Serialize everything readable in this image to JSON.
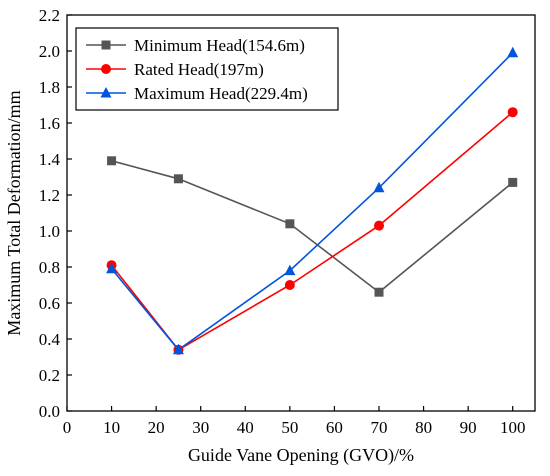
{
  "chart_data": {
    "type": "line",
    "title": "",
    "xlabel": "Guide Vane Opening (GVO)/%",
    "ylabel": "Maximum Total Deformation/mm",
    "xlim": [
      0,
      105
    ],
    "ylim": [
      0.0,
      2.2
    ],
    "xticks": [
      0,
      10,
      20,
      30,
      40,
      50,
      60,
      70,
      80,
      90,
      100
    ],
    "xtick_labels": [
      "0",
      "10",
      "20",
      "30",
      "40",
      "50",
      "60",
      "70",
      "80",
      "90",
      "100"
    ],
    "yticks": [
      0.0,
      0.2,
      0.4,
      0.6,
      0.8,
      1.0,
      1.2,
      1.4,
      1.6,
      1.8,
      2.0,
      2.2
    ],
    "ytick_labels": [
      "0.0",
      "0.2",
      "0.4",
      "0.6",
      "0.8",
      "1.0",
      "1.2",
      "1.4",
      "1.6",
      "1.8",
      "2.0",
      "2.2"
    ],
    "grid": false,
    "legend_position": "top-left",
    "x": [
      10,
      25,
      50,
      70,
      100
    ],
    "series": [
      {
        "name": "Minimum Head(154.6m)",
        "values": [
          1.39,
          1.29,
          1.04,
          0.66,
          1.27
        ],
        "color": "#555555",
        "marker": "square"
      },
      {
        "name": "Rated Head(197m)",
        "values": [
          0.81,
          0.34,
          0.7,
          1.03,
          1.66
        ],
        "color": "#ff0000",
        "marker": "circle"
      },
      {
        "name": "Maximum Head(229.4m)",
        "values": [
          0.79,
          0.34,
          0.78,
          1.24,
          1.99
        ],
        "color": "#0055dd",
        "marker": "triangle"
      }
    ]
  }
}
